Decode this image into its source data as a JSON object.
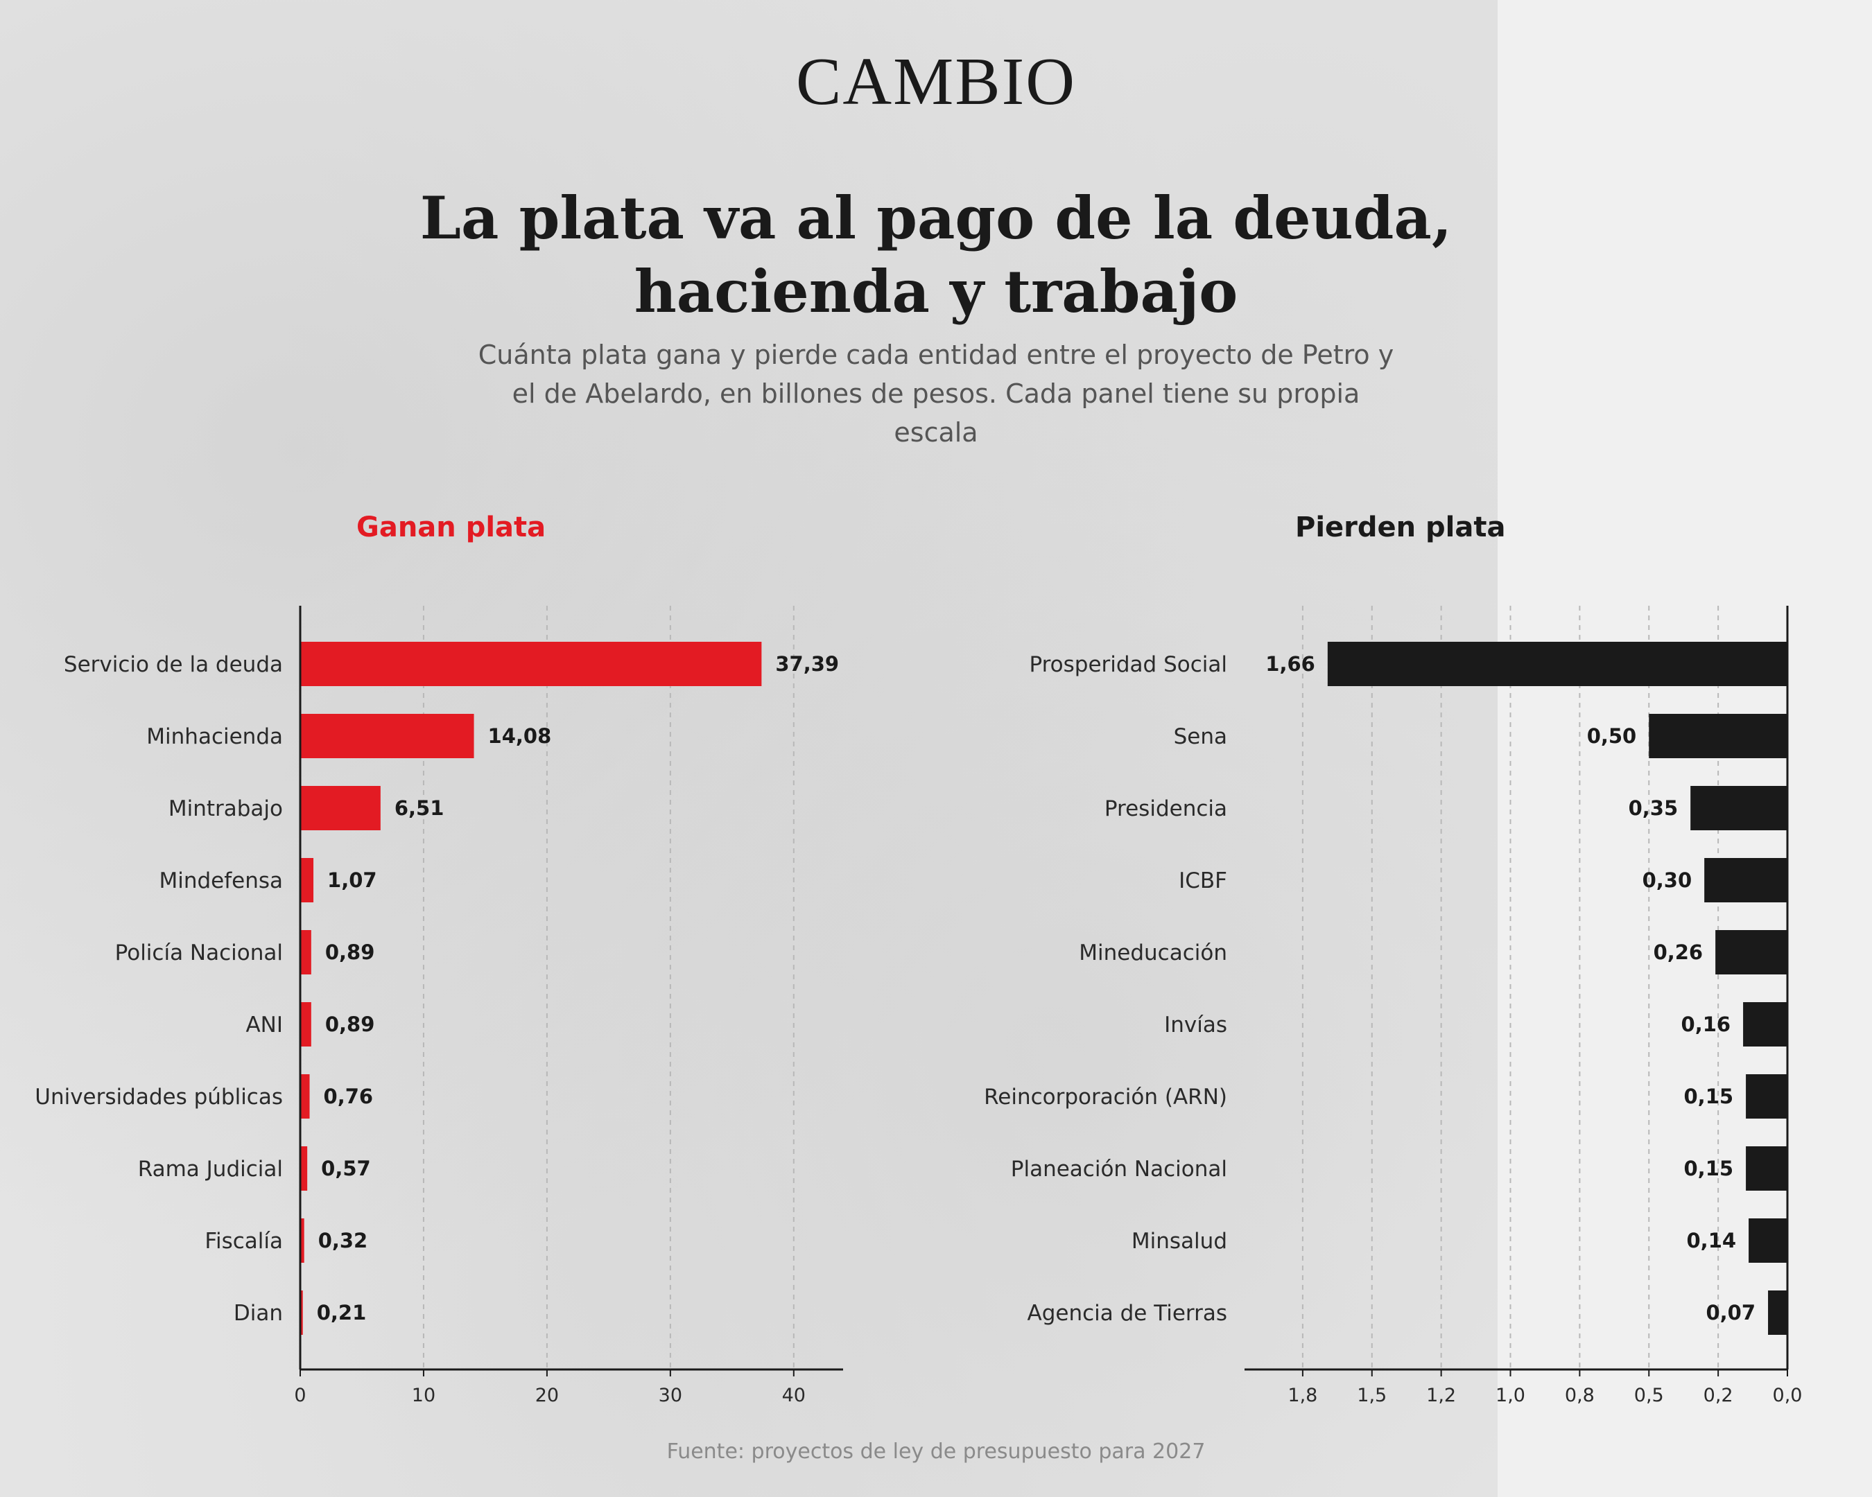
{
  "brand": "CAMBIO",
  "title": "La plata va al pago de la deuda, hacienda y trabajo",
  "subtitle": "Cuánta plata gana y pierde cada entidad entre el proyecto de Petro y el de Abelardo, en billones de pesos. Cada panel tiene su propia escala",
  "source": "Fuente: proyectos de ley de presupuesto para 2027",
  "colors": {
    "gain": "#e31b23",
    "loss": "#1a1a1a",
    "text": "#1a1a1a",
    "grid": "#b8b8b8"
  },
  "chart_data": [
    {
      "type": "bar",
      "orientation": "horizontal",
      "title": "Ganan plata",
      "categories": [
        "Servicio de la deuda",
        "Minhacienda",
        "Mintrabajo",
        "Mindefensa",
        "Policía Nacional",
        "ANI",
        "Universidades públicas",
        "Rama Judicial",
        "Fiscalía",
        "Dian"
      ],
      "values": [
        37.39,
        14.08,
        6.51,
        1.07,
        0.89,
        0.89,
        0.76,
        0.57,
        0.32,
        0.21
      ],
      "value_labels": [
        "37,39",
        "14,08",
        "6,51",
        "1,07",
        "0,89",
        "0,89",
        "0,76",
        "0,57",
        "0,32",
        "0,21"
      ],
      "xlim": [
        0,
        44
      ],
      "xticks": [
        0,
        10,
        20,
        30,
        40
      ],
      "xtick_labels": [
        "0",
        "10",
        "20",
        "30",
        "40"
      ],
      "grid": true,
      "color": "#e31b23"
    },
    {
      "type": "bar",
      "orientation": "horizontal",
      "direction": "reversed",
      "title": "Pierden plata",
      "categories": [
        "Prosperidad Social",
        "Sena",
        "Presidencia",
        "ICBF",
        "Mineducación",
        "Invías",
        "Reincorporación (ARN)",
        "Planeación Nacional",
        "Minsalud",
        "Agencia de Tierras"
      ],
      "values": [
        1.66,
        0.5,
        0.35,
        0.3,
        0.26,
        0.16,
        0.15,
        0.15,
        0.14,
        0.07
      ],
      "value_labels": [
        "1,66",
        "0,50",
        "0,35",
        "0,30",
        "0,26",
        "0,16",
        "0,15",
        "0,15",
        "0,14",
        "0,07"
      ],
      "xlim": [
        0,
        1.96
      ],
      "xticks": [
        1.75,
        1.5,
        1.25,
        1.0,
        0.75,
        0.5,
        0.25,
        0.0
      ],
      "xtick_labels": [
        "1,8",
        "1,5",
        "1,2",
        "1,0",
        "0,8",
        "0,5",
        "0,2",
        "0,0"
      ],
      "grid": true,
      "color": "#1a1a1a"
    }
  ]
}
